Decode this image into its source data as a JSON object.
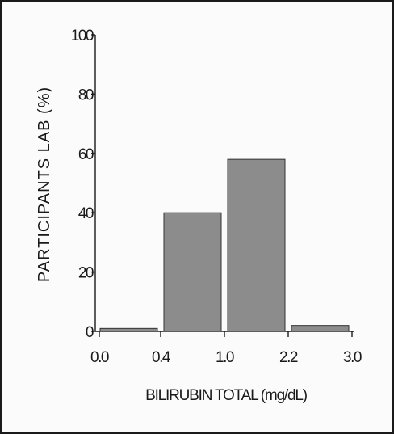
{
  "chart_data": {
    "type": "bar",
    "xlabel": "BILIRUBIN TOTAL (mg/dL)",
    "ylabel": "PARTICIPANTS LAB (%)",
    "ylim": [
      0,
      100
    ],
    "y_ticks": [
      "0",
      "20",
      "40",
      "60",
      "80",
      "100"
    ],
    "x_tick_labels": [
      "0.0",
      "0.4",
      "1.0",
      "2.2",
      "3.0"
    ],
    "bins": [
      {
        "from": "0.0",
        "to": "0.4",
        "value": 1
      },
      {
        "from": "0.4",
        "to": "1.0",
        "value": 40
      },
      {
        "from": "1.0",
        "to": "2.2",
        "value": 58
      },
      {
        "from": "2.2",
        "to": "3.0",
        "value": 2
      }
    ],
    "bar_color": "#8c8c8c",
    "grid": false,
    "legend": "none"
  }
}
